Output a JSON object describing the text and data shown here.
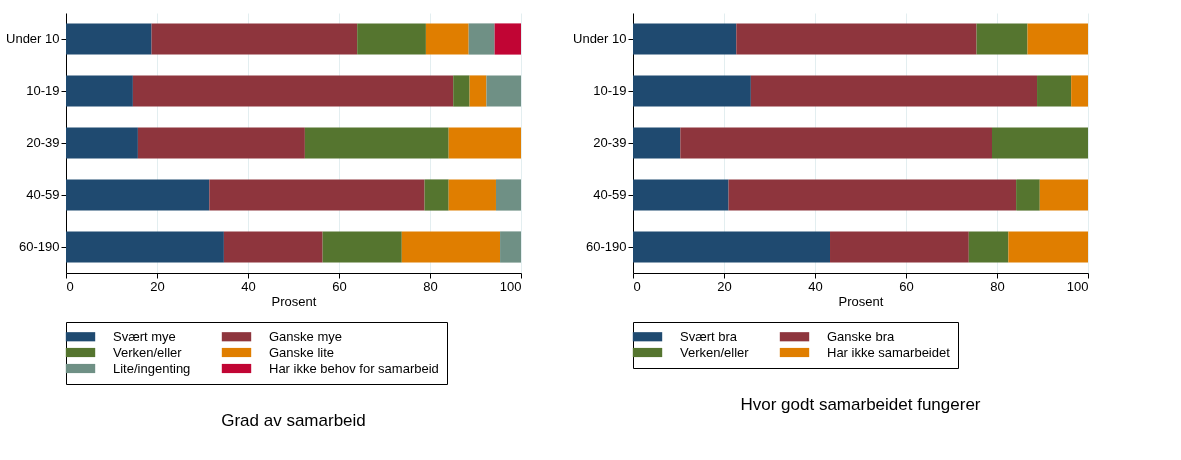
{
  "chart_data": [
    {
      "type": "bar",
      "orientation": "horizontal",
      "stacked": true,
      "title": "Grad av samarbeid",
      "xlabel": "Prosent",
      "categories": [
        "Under 10",
        "10-19",
        "20-39",
        "40-59",
        "60-190"
      ],
      "xlim": [
        0,
        100
      ],
      "xticks": [
        0,
        20,
        40,
        60,
        80,
        100
      ],
      "grid": "x",
      "legend": "bottom",
      "series": [
        {
          "name": "Svært mye",
          "color": "#1f4a70",
          "values": [
            18.8,
            14.7,
            15.8,
            31.5,
            34.7
          ]
        },
        {
          "name": "Ganske mye",
          "color": "#8e353d",
          "values": [
            45.2,
            70.4,
            36.7,
            47.3,
            21.7
          ]
        },
        {
          "name": "Verken/eller",
          "color": "#55752f",
          "values": [
            15.1,
            3.6,
            31.6,
            5.3,
            17.4
          ]
        },
        {
          "name": "Ganske lite",
          "color": "#e07e00",
          "values": [
            9.4,
            3.7,
            15.9,
            10.4,
            21.6
          ]
        },
        {
          "name": "Lite/ingenting",
          "color": "#6f9085",
          "values": [
            5.7,
            7.6,
            null,
            5.5,
            4.6
          ]
        },
        {
          "name": "Har ikke behov for samarbeid",
          "color": "#c10534",
          "values": [
            5.8,
            null,
            null,
            null,
            null
          ]
        }
      ]
    },
    {
      "type": "bar",
      "orientation": "horizontal",
      "stacked": true,
      "title": "Hvor godt samarbeidet fungerer",
      "xlabel": "Prosent",
      "categories": [
        "Under 10",
        "10-19",
        "20-39",
        "40-59",
        "60-190"
      ],
      "xlim": [
        0,
        100
      ],
      "xticks": [
        0,
        20,
        40,
        60,
        80,
        100
      ],
      "grid": "x",
      "legend": "bottom",
      "series": [
        {
          "name": "Svært bra",
          "color": "#1f4a70",
          "values": [
            22.7,
            25.9,
            10.4,
            21.0,
            43.3
          ]
        },
        {
          "name": "Ganske bra",
          "color": "#8e353d",
          "values": [
            52.8,
            62.9,
            68.5,
            63.2,
            30.5
          ]
        },
        {
          "name": "Verken/eller",
          "color": "#55752f",
          "values": [
            11.2,
            7.5,
            21.1,
            5.2,
            8.7
          ]
        },
        {
          "name": "Har ikke samarbeidet",
          "color": "#e07e00",
          "values": [
            13.3,
            3.7,
            null,
            10.6,
            17.5
          ]
        }
      ]
    }
  ]
}
